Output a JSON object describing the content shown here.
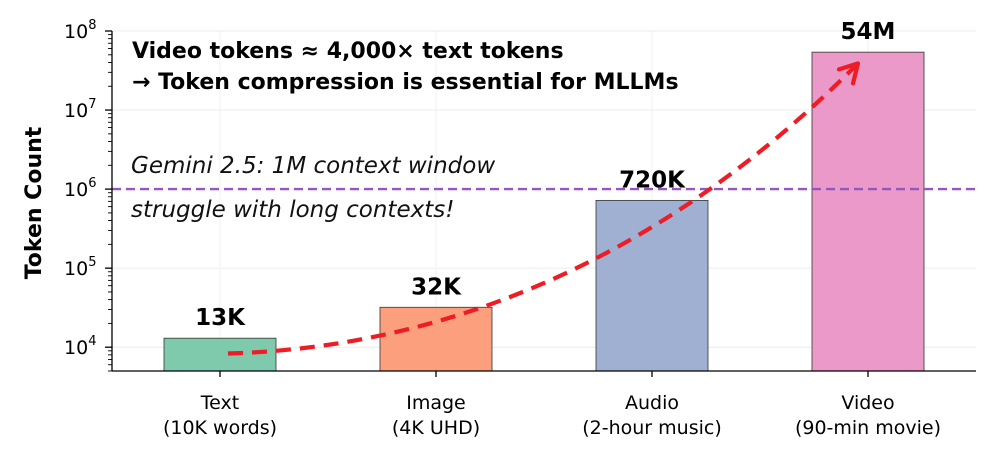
{
  "chart_data": {
    "type": "bar",
    "yscale": "log",
    "ylim": [
      5000,
      100000000
    ],
    "ylabel": "Token Count",
    "grid": true,
    "yticks": [
      {
        "base": "10",
        "exp": "4"
      },
      {
        "base": "10",
        "exp": "5"
      },
      {
        "base": "10",
        "exp": "6"
      },
      {
        "base": "10",
        "exp": "7"
      },
      {
        "base": "10",
        "exp": "8"
      }
    ],
    "categories": [
      [
        "Text",
        "(10K words)"
      ],
      [
        "Image",
        "(4K UHD)"
      ],
      [
        "Audio",
        "(2-hour music)"
      ],
      [
        "Video",
        "(90-min movie)"
      ]
    ],
    "values": [
      13000,
      32000,
      720000,
      54000000
    ],
    "value_labels": [
      "13K",
      "32K",
      "720K",
      "54M"
    ],
    "colors": [
      "#7fcaad",
      "#fc9f7c",
      "#9fb0d2",
      "#ea99c9"
    ],
    "reference_line": {
      "value": 1000000,
      "color": "#9457be",
      "lines": [
        "Gemini 2.5: 1M context window",
        "struggle with long contexts!"
      ]
    },
    "headline": [
      "Video tokens ≈ 4,000× text tokens",
      "→ Token compression is essential for MLLMs"
    ],
    "trend_arrow": {
      "color": "#ee1c24",
      "from": "Text",
      "to": "Video"
    }
  }
}
